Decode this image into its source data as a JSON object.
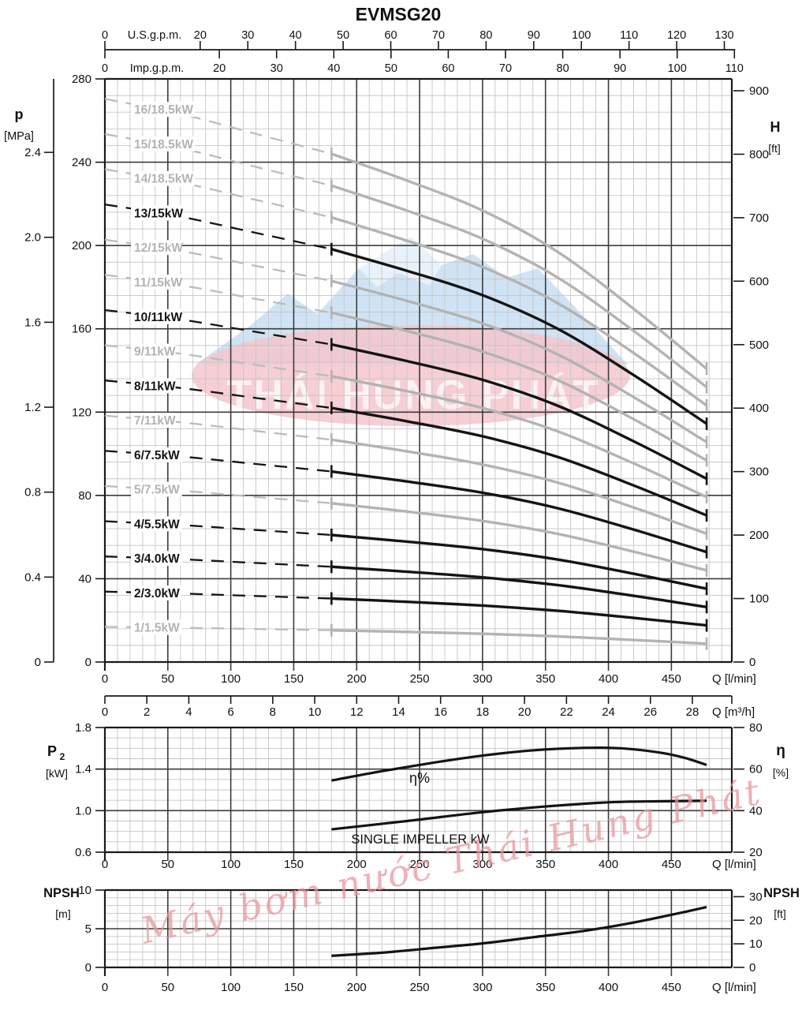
{
  "title": "EVMSG20",
  "colors": {
    "curve_black": "#141414",
    "curve_gray": "#b3b3b3",
    "grid_minor": "#c6c6c6",
    "grid_major": "#3c3c3c",
    "axis": "#1a1a1a",
    "watermark_mountain": "#c3dcf1",
    "watermark_ellipse": "#f5c5cc",
    "watermark_badge_text": "#fdf4f5",
    "watermark_script": "#e6959b"
  },
  "watermarks": {
    "badge_text": "THÁI HUNG PHÁT",
    "script_text": "Máy bơm nước Thái Hung Phát"
  },
  "chart_data": [
    {
      "id": "head-flow",
      "type": "line",
      "title": "EVMSG20",
      "axes": {
        "top_usgpm": {
          "label": "U.S.g.p.m.",
          "ticks": [
            0,
            20,
            30,
            40,
            50,
            60,
            70,
            80,
            90,
            100,
            110,
            120,
            130
          ],
          "lmin_per_unit": 3.785
        },
        "top_impgpm": {
          "label": "Imp.g.p.m.",
          "ticks": [
            0,
            20,
            30,
            40,
            50,
            60,
            70,
            80,
            90,
            100,
            110
          ],
          "lmin_per_unit": 4.546
        },
        "bottom_lmin": {
          "label": "Q [l/min]",
          "ticks": [
            0,
            50,
            100,
            150,
            200,
            250,
            300,
            350,
            400,
            450
          ],
          "max": 498
        },
        "bottom_m3h": {
          "label": "Q [m³/h]",
          "ticks": [
            0,
            2,
            4,
            6,
            8,
            10,
            12,
            14,
            16,
            18,
            20,
            22,
            24,
            26,
            28
          ],
          "lmin_per_unit": 16.667
        },
        "left_head_m": {
          "ticks": [
            0,
            40,
            80,
            120,
            160,
            200,
            240,
            280
          ],
          "max": 280,
          "minor_step": 8
        },
        "left_pressure_mpa": {
          "label_line1": "p",
          "label_line2": "[MPa]",
          "ticks": [
            0,
            0.4,
            0.8,
            1.2,
            1.6,
            2.0,
            2.4
          ],
          "m_per_unit": 101.97
        },
        "right_head_ft": {
          "label_line1": "H",
          "label_line2": "[ft]",
          "ticks": [
            0,
            100,
            200,
            300,
            400,
            500,
            600,
            700,
            800,
            900
          ],
          "m_per_unit": 0.3048
        }
      },
      "q_dashed_start": 0,
      "q_solid_start": 180,
      "q_end": 478,
      "per_stage_head": {
        "q_lmin": [
          0,
          60,
          120,
          180,
          240,
          300,
          360,
          420,
          478
        ],
        "head_m": [
          16.9,
          16.45,
          15.85,
          15.25,
          14.45,
          13.55,
          12.3,
          10.6,
          8.8
        ]
      },
      "curves": [
        {
          "stages": 16,
          "label": "16/18.5kW",
          "emphasis": false
        },
        {
          "stages": 15,
          "label": "15/18.5kW",
          "emphasis": false
        },
        {
          "stages": 14,
          "label": "14/18.5kW",
          "emphasis": false
        },
        {
          "stages": 13,
          "label": "13/15kW",
          "emphasis": true
        },
        {
          "stages": 12,
          "label": "12/15kW",
          "emphasis": false
        },
        {
          "stages": 11,
          "label": "11/15kW",
          "emphasis": false
        },
        {
          "stages": 10,
          "label": "10/11kW",
          "emphasis": true
        },
        {
          "stages": 9,
          "label": "9/11kW",
          "emphasis": false
        },
        {
          "stages": 8,
          "label": "8/11kW",
          "emphasis": true
        },
        {
          "stages": 7,
          "label": "7/11kW",
          "emphasis": false
        },
        {
          "stages": 6,
          "label": "6/7.5kW",
          "emphasis": true
        },
        {
          "stages": 5,
          "label": "5/7.5kW",
          "emphasis": false
        },
        {
          "stages": 4,
          "label": "4/5.5kW",
          "emphasis": true
        },
        {
          "stages": 3,
          "label": "3/4.0kW",
          "emphasis": true
        },
        {
          "stages": 2,
          "label": "2/3.0kW",
          "emphasis": true
        },
        {
          "stages": 1,
          "label": "1/1.5kW",
          "emphasis": false
        }
      ]
    },
    {
      "id": "power-efficiency",
      "type": "line",
      "axes": {
        "left_p2_kw": {
          "label_line1": "P",
          "label_sub": "2",
          "label_line2": "[kW]",
          "ticks": [
            0.6,
            1.0,
            1.4,
            1.8
          ],
          "min": 0.6,
          "max": 1.8,
          "minor_step": 0.1
        },
        "right_eta": {
          "label_line1": "η",
          "label_line2": "[%]",
          "ticks": [
            20,
            40,
            60,
            80
          ],
          "min": 20,
          "max": 80
        },
        "bottom_lmin": {
          "label": "Q [l/min]",
          "ticks": [
            0,
            50,
            100,
            150,
            200,
            250,
            300,
            350,
            400,
            450
          ]
        }
      },
      "eta_label": "η%",
      "p2_label": "SINGLE IMPELLER kW",
      "eta_curve": {
        "q": [
          180,
          220,
          260,
          300,
          340,
          380,
          410,
          440,
          460,
          478
        ],
        "eta_pct": [
          54.5,
          59,
          63,
          66.5,
          69,
          70.2,
          70,
          68,
          65.5,
          62
        ]
      },
      "p2_curve": {
        "q": [
          180,
          240,
          300,
          350,
          400,
          440,
          478
        ],
        "kw": [
          0.82,
          0.9,
          0.985,
          1.04,
          1.08,
          1.09,
          1.095
        ]
      }
    },
    {
      "id": "npsh",
      "type": "line",
      "axes": {
        "left_npsh_m": {
          "label_line1": "NPSH",
          "label_line2": "[m]",
          "ticks": [
            0,
            5,
            10
          ],
          "min": 0,
          "max": 10,
          "minor_step": 1
        },
        "right_npsh_ft": {
          "label_line1": "NPSH",
          "label_line2": "[ft]",
          "ticks": [
            0,
            10,
            20,
            30
          ],
          "m_per_unit": 0.3048
        },
        "bottom_lmin": {
          "label": "Q [l/min]",
          "ticks": [
            0,
            50,
            100,
            150,
            200,
            250,
            300,
            350,
            400,
            450
          ]
        }
      },
      "curve": {
        "q": [
          180,
          220,
          260,
          300,
          340,
          380,
          420,
          450,
          478
        ],
        "npsh_m": [
          1.5,
          1.9,
          2.5,
          3.1,
          3.9,
          4.7,
          5.8,
          6.8,
          7.8
        ]
      }
    }
  ]
}
